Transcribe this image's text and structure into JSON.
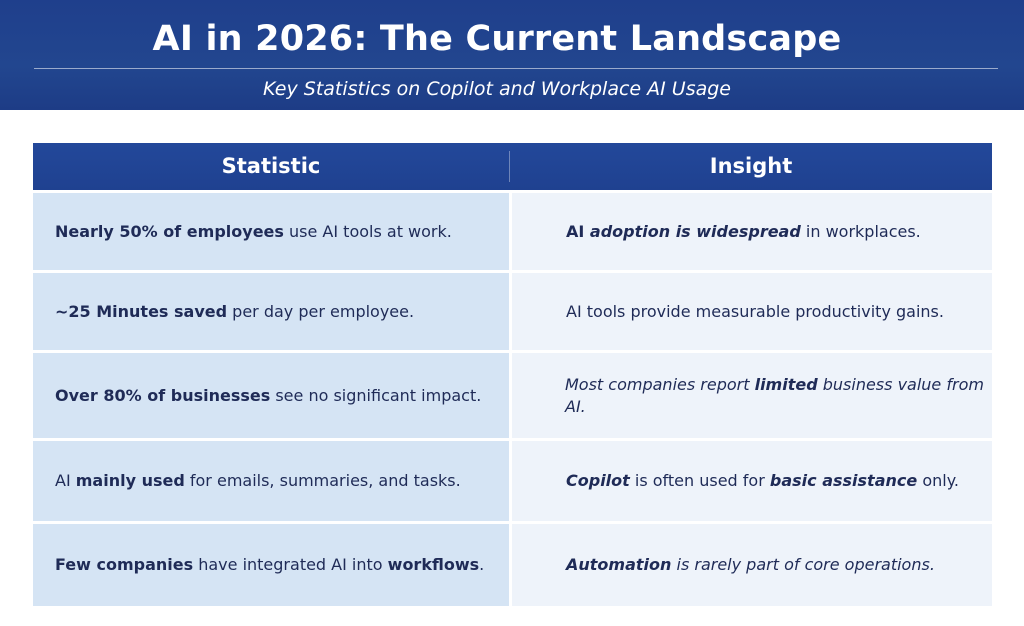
{
  "header": {
    "title": "AI in 2026: The Current Landscape",
    "subtitle": "Key Statistics on Copilot and Workplace AI Usage"
  },
  "table": {
    "columns": [
      "Statistic",
      "Insight"
    ],
    "rows": [
      {
        "statistic": [
          {
            "text": "Nearly 50% of employees",
            "bold": true
          },
          {
            "text": " use AI tools at work."
          }
        ],
        "insight": [
          {
            "text": "AI ",
            "bold": true
          },
          {
            "text": "adoption is widespread",
            "bold": true,
            "italic": true
          },
          {
            "text": " in workplaces."
          }
        ]
      },
      {
        "statistic": [
          {
            "text": "~25 Minutes saved",
            "bold": true
          },
          {
            "text": " per day per employee."
          }
        ],
        "insight": [
          {
            "text": "AI tools provide measurable productivity gains."
          }
        ]
      },
      {
        "statistic": [
          {
            "text": "Over 80% of businesses",
            "bold": true
          },
          {
            "text": " see no significant impact."
          }
        ],
        "insight": [
          {
            "text": "Most companies report ",
            "italic": true
          },
          {
            "text": "limited",
            "bold": true,
            "italic": true
          },
          {
            "text": " business value from AI.",
            "italic": true
          }
        ]
      },
      {
        "statistic": [
          {
            "text": "AI "
          },
          {
            "text": "mainly used",
            "bold": true
          },
          {
            "text": " for emails, summaries, and tasks."
          }
        ],
        "insight": [
          {
            "text": "Copilot",
            "bold": true,
            "italic": true
          },
          {
            "text": " is often used for "
          },
          {
            "text": "basic assistance",
            "bold": true,
            "italic": true
          },
          {
            "text": " only."
          }
        ]
      },
      {
        "statistic": [
          {
            "text": "Few companies",
            "bold": true
          },
          {
            "text": " have integrated AI into "
          },
          {
            "text": "workflows",
            "bold": true
          },
          {
            "text": "."
          }
        ],
        "insight": [
          {
            "text": "Automation",
            "bold": true,
            "italic": true
          },
          {
            "text": " is rarely part of core operations.",
            "italic": true
          }
        ]
      }
    ]
  }
}
